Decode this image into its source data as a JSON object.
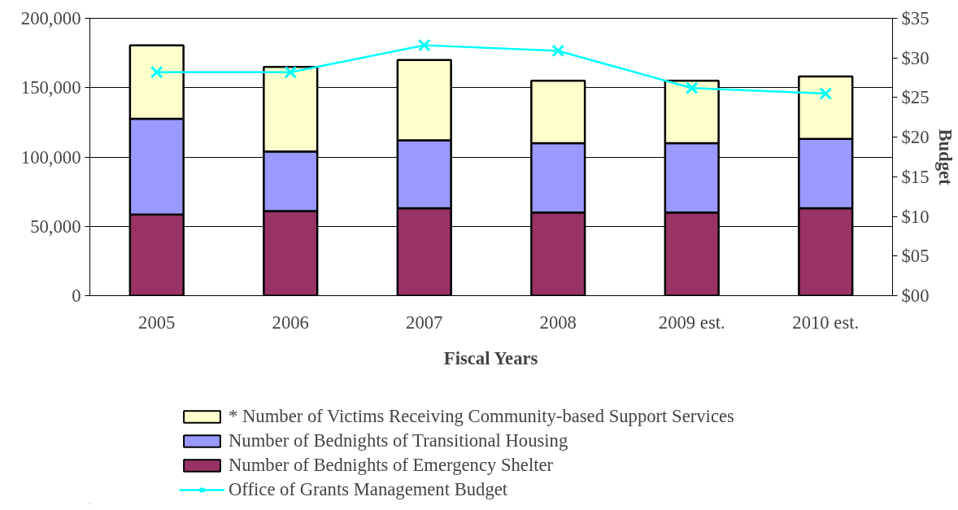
{
  "chart_data": {
    "type": "bar",
    "stacked": true,
    "xlabel": "Fiscal Years",
    "y2label": "Budget",
    "categories": [
      "2005",
      "2006",
      "2007",
      "2008",
      "2009 est.",
      "2010 est."
    ],
    "series": [
      {
        "name": "Number of Bednights of Emergency Shelter",
        "color": "#993366",
        "values": [
          58500,
          61000,
          63000,
          60000,
          60000,
          63000
        ]
      },
      {
        "name": "Number of Bednights of Transitional Housing",
        "color": "#9999ff",
        "values": [
          69000,
          43000,
          49000,
          50000,
          50000,
          50000
        ]
      },
      {
        "name": "* Number of Victims Receiving Community-based Support Services",
        "color": "#ffffcc",
        "values": [
          53000,
          61000,
          58000,
          45000,
          45000,
          45000
        ]
      },
      {
        "name": "Office of Grants Management Budget",
        "type": "line",
        "axis": "y2",
        "color": "#00ffff",
        "marker": "cross",
        "values": [
          28.2,
          28.2,
          31.6,
          30.9,
          26.2,
          25.5
        ]
      }
    ],
    "ylim": [
      0,
      200000
    ],
    "yticks": [
      {
        "value": 0,
        "label": "0"
      },
      {
        "value": 50000,
        "label": "50,000"
      },
      {
        "value": 100000,
        "label": "100,000"
      },
      {
        "value": 150000,
        "label": "150,000"
      },
      {
        "value": 200000,
        "label": "200,000"
      }
    ],
    "y2lim": [
      0,
      35
    ],
    "y2ticks": [
      {
        "value": 0,
        "label": "$00"
      },
      {
        "value": 5,
        "label": "$05"
      },
      {
        "value": 10,
        "label": "$10"
      },
      {
        "value": 15,
        "label": "$15"
      },
      {
        "value": 20,
        "label": "$20"
      },
      {
        "value": 25,
        "label": "$25"
      },
      {
        "value": 30,
        "label": "$30"
      },
      {
        "value": 35,
        "label": "$35"
      }
    ],
    "grid": "y",
    "legend": "bottom"
  }
}
